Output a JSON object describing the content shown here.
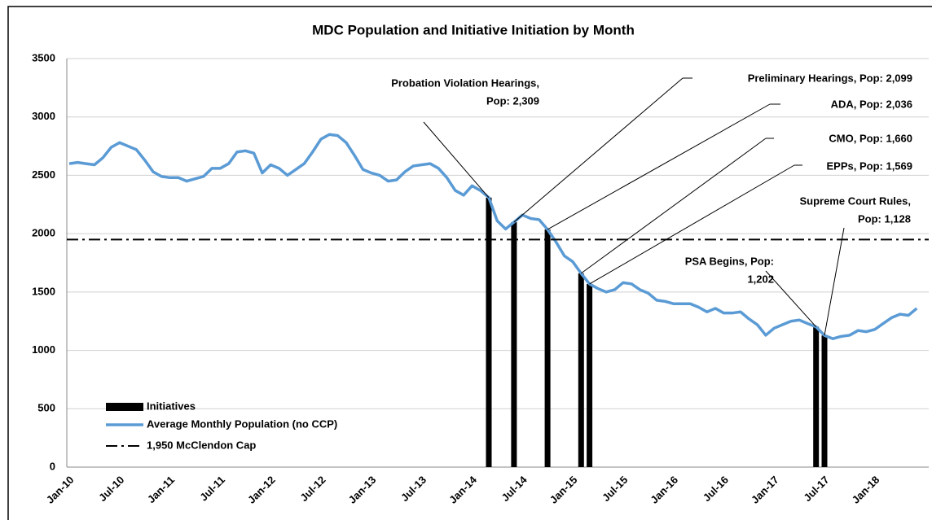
{
  "chart_data": {
    "type": "line",
    "title": "MDC Population and Initiative Initiation by Month",
    "categories": [
      "Jan-10",
      null,
      null,
      null,
      null,
      null,
      "Jul-10",
      null,
      null,
      null,
      null,
      null,
      "Jan-11",
      null,
      null,
      null,
      null,
      null,
      "Jul-11",
      null,
      null,
      null,
      null,
      null,
      "Jan-12",
      null,
      null,
      null,
      null,
      null,
      "Jul-12",
      null,
      null,
      null,
      null,
      null,
      "Jan-13",
      null,
      null,
      null,
      null,
      null,
      "Jul-13",
      null,
      null,
      null,
      null,
      null,
      "Jan-14",
      null,
      null,
      null,
      null,
      null,
      "Jul-14",
      null,
      null,
      null,
      null,
      null,
      "Jan-15",
      null,
      null,
      null,
      null,
      null,
      "Jul-15",
      null,
      null,
      null,
      null,
      null,
      "Jan-16",
      null,
      null,
      null,
      null,
      null,
      "Jul-16",
      null,
      null,
      null,
      null,
      null,
      "Jan-17",
      null,
      null,
      null,
      null,
      null,
      "Jul-17",
      null,
      null,
      null,
      null,
      null,
      "Jan-18",
      null,
      null,
      null,
      null,
      null
    ],
    "series": [
      {
        "name": "Initiatives",
        "kind": "bar",
        "color": "#000000",
        "values": [
          null,
          null,
          null,
          null,
          null,
          null,
          null,
          null,
          null,
          null,
          null,
          null,
          null,
          null,
          null,
          null,
          null,
          null,
          null,
          null,
          null,
          null,
          null,
          null,
          null,
          null,
          null,
          null,
          null,
          null,
          null,
          null,
          null,
          null,
          null,
          null,
          null,
          null,
          null,
          null,
          null,
          null,
          null,
          null,
          null,
          null,
          null,
          null,
          null,
          null,
          2309,
          null,
          null,
          2099,
          null,
          null,
          null,
          2036,
          null,
          null,
          null,
          1660,
          1569,
          null,
          null,
          null,
          null,
          null,
          null,
          null,
          null,
          null,
          null,
          null,
          null,
          null,
          null,
          null,
          null,
          null,
          null,
          null,
          null,
          null,
          null,
          null,
          null,
          null,
          null,
          1202,
          1128,
          null,
          null,
          null,
          null,
          null,
          null,
          null,
          null,
          null,
          null,
          null
        ]
      },
      {
        "name": "Average Monthly Population (no CCP)",
        "kind": "line",
        "color": "#5b9bd5",
        "values": [
          2600,
          2610,
          2600,
          2590,
          2650,
          2740,
          2780,
          2750,
          2720,
          2630,
          2530,
          2490,
          2480,
          2480,
          2450,
          2470,
          2490,
          2560,
          2560,
          2600,
          2700,
          2710,
          2690,
          2520,
          2590,
          2560,
          2500,
          2550,
          2600,
          2700,
          2810,
          2850,
          2840,
          2780,
          2670,
          2550,
          2520,
          2500,
          2450,
          2460,
          2530,
          2580,
          2590,
          2600,
          2560,
          2480,
          2370,
          2330,
          2410,
          2370,
          2309,
          2110,
          2040,
          2099,
          2160,
          2130,
          2120,
          2036,
          1930,
          1810,
          1760,
          1660,
          1569,
          1530,
          1500,
          1520,
          1580,
          1570,
          1520,
          1490,
          1430,
          1420,
          1400,
          1400,
          1400,
          1370,
          1330,
          1360,
          1320,
          1320,
          1330,
          1270,
          1220,
          1130,
          1190,
          1220,
          1250,
          1260,
          1230,
          1202,
          1128,
          1100,
          1120,
          1130,
          1170,
          1160,
          1180,
          1230,
          1280,
          1310,
          1300,
          1360
        ]
      },
      {
        "name": "1,950 McClendon Cap",
        "kind": "hline",
        "color": "#000000",
        "value": 1950
      }
    ],
    "annotations": [
      {
        "lines": [
          "Probation Violation Hearings,",
          "Pop: 2,309"
        ],
        "index": 50
      },
      {
        "lines": [
          "Preliminary Hearings, Pop: 2,099"
        ],
        "index": 53
      },
      {
        "lines": [
          "ADA, Pop: 2,036"
        ],
        "index": 57
      },
      {
        "lines": [
          "CMO, Pop: 1,660"
        ],
        "index": 61
      },
      {
        "lines": [
          "EPPs, Pop: 1,569"
        ],
        "index": 62
      },
      {
        "lines": [
          "Supreme Court Rules,",
          "Pop: 1,128"
        ],
        "index": 90
      },
      {
        "lines": [
          "PSA Begins, Pop:",
          "1,202"
        ],
        "index": 89
      }
    ],
    "ylim": [
      0,
      3500
    ],
    "yticks": [
      0,
      500,
      1000,
      1500,
      2000,
      2500,
      3000,
      3500
    ],
    "grid": true
  }
}
